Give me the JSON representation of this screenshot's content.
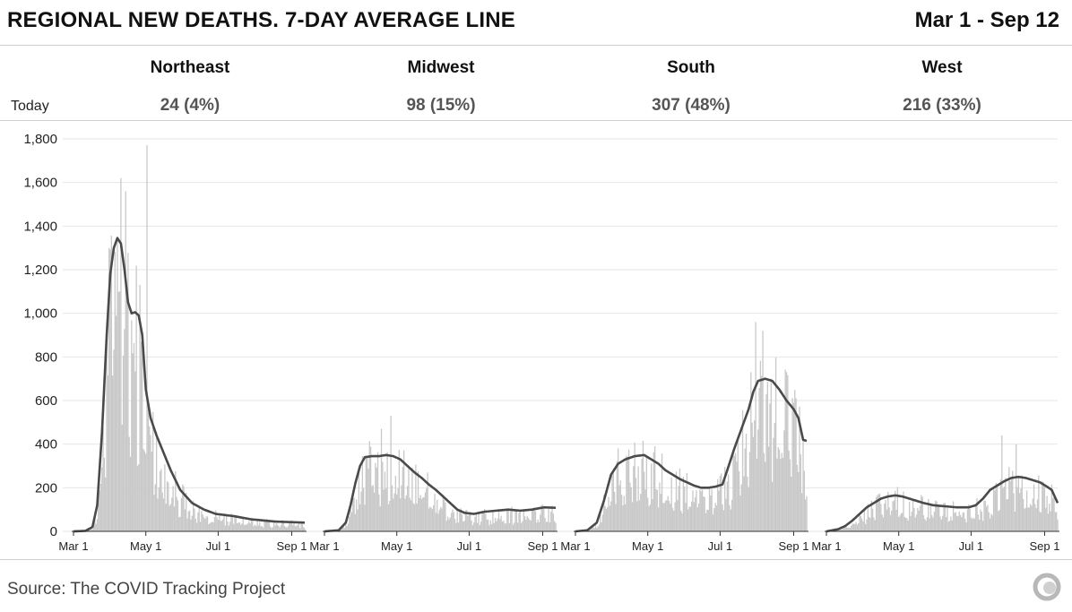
{
  "header": {
    "title": "REGIONAL NEW DEATHS. 7-DAY AVERAGE LINE",
    "date_range": "Mar 1 - Sep 12"
  },
  "today_label": "Today",
  "regions": [
    {
      "name": "Northeast",
      "today": "24 (4%)"
    },
    {
      "name": "Midwest",
      "today": "98 (15%)"
    },
    {
      "name": "South",
      "today": "307 (48%)"
    },
    {
      "name": "West",
      "today": "216 (33%)"
    }
  ],
  "footer": {
    "source": "Source: The COVID Tracking Project"
  },
  "colors": {
    "bars": "#c8c8c8",
    "line": "#4a4a4a",
    "grid": "#e6e6e6",
    "axis": "#333333"
  },
  "chart_data": {
    "type": "bar",
    "series_line": "7-day average",
    "y_ticks": [
      0,
      200,
      400,
      600,
      800,
      1000,
      1200,
      1400,
      1600,
      1800
    ],
    "y_tick_labels": [
      "0",
      "200",
      "400",
      "600",
      "800",
      "1,000",
      "1,200",
      "1,400",
      "1,600",
      "1,800"
    ],
    "ylim": [
      0,
      1800
    ],
    "x_tick_labels": [
      "Mar 1",
      "May 1",
      "Jul 1",
      "Sep 1"
    ],
    "x_tick_days": [
      0,
      61,
      122,
      184
    ],
    "x_range_days": [
      0,
      195
    ],
    "grid": true,
    "panels": [
      {
        "name": "Northeast",
        "avg_knots": [
          [
            0,
            0
          ],
          [
            10,
            2
          ],
          [
            16,
            20
          ],
          [
            20,
            120
          ],
          [
            24,
            450
          ],
          [
            28,
            900
          ],
          [
            31,
            1180
          ],
          [
            34,
            1300
          ],
          [
            37,
            1345
          ],
          [
            40,
            1320
          ],
          [
            43,
            1200
          ],
          [
            46,
            1050
          ],
          [
            49,
            1000
          ],
          [
            52,
            1005
          ],
          [
            55,
            990
          ],
          [
            58,
            900
          ],
          [
            61,
            650
          ],
          [
            65,
            520
          ],
          [
            70,
            440
          ],
          [
            76,
            360
          ],
          [
            82,
            280
          ],
          [
            90,
            190
          ],
          [
            100,
            130
          ],
          [
            110,
            100
          ],
          [
            120,
            80
          ],
          [
            135,
            70
          ],
          [
            150,
            55
          ],
          [
            170,
            45
          ],
          [
            195,
            40
          ]
        ],
        "daily_amp": [
          [
            0,
            0
          ],
          [
            12,
            10
          ],
          [
            18,
            80
          ],
          [
            24,
            600
          ],
          [
            30,
            1350
          ],
          [
            38,
            1500
          ],
          [
            45,
            1480
          ],
          [
            52,
            1300
          ],
          [
            58,
            1250
          ],
          [
            64,
            800
          ],
          [
            72,
            560
          ],
          [
            80,
            420
          ],
          [
            90,
            260
          ],
          [
            100,
            180
          ],
          [
            120,
            120
          ],
          [
            150,
            90
          ],
          [
            195,
            60
          ]
        ],
        "spikes": [
          [
            62,
            1770
          ],
          [
            40,
            1620
          ],
          [
            44,
            1560
          ]
        ]
      },
      {
        "name": "Midwest",
        "avg_knots": [
          [
            0,
            0
          ],
          [
            12,
            5
          ],
          [
            18,
            40
          ],
          [
            22,
            120
          ],
          [
            26,
            220
          ],
          [
            30,
            300
          ],
          [
            34,
            340
          ],
          [
            40,
            345
          ],
          [
            46,
            345
          ],
          [
            52,
            350
          ],
          [
            58,
            345
          ],
          [
            64,
            330
          ],
          [
            70,
            300
          ],
          [
            76,
            270
          ],
          [
            82,
            245
          ],
          [
            88,
            215
          ],
          [
            94,
            190
          ],
          [
            100,
            160
          ],
          [
            106,
            130
          ],
          [
            112,
            100
          ],
          [
            118,
            85
          ],
          [
            126,
            80
          ],
          [
            135,
            90
          ],
          [
            145,
            95
          ],
          [
            155,
            100
          ],
          [
            165,
            95
          ],
          [
            175,
            100
          ],
          [
            185,
            110
          ],
          [
            195,
            108
          ]
        ],
        "daily_amp": [
          [
            0,
            0
          ],
          [
            16,
            30
          ],
          [
            24,
            260
          ],
          [
            32,
            400
          ],
          [
            45,
            430
          ],
          [
            55,
            460
          ],
          [
            65,
            430
          ],
          [
            75,
            350
          ],
          [
            90,
            290
          ],
          [
            105,
            200
          ],
          [
            120,
            140
          ],
          [
            140,
            150
          ],
          [
            160,
            160
          ],
          [
            180,
            170
          ],
          [
            195,
            180
          ]
        ],
        "spikes": [
          [
            56,
            530
          ],
          [
            48,
            470
          ]
        ]
      },
      {
        "name": "South",
        "avg_knots": [
          [
            0,
            0
          ],
          [
            10,
            5
          ],
          [
            18,
            40
          ],
          [
            24,
            140
          ],
          [
            30,
            260
          ],
          [
            36,
            310
          ],
          [
            42,
            330
          ],
          [
            50,
            345
          ],
          [
            58,
            350
          ],
          [
            64,
            330
          ],
          [
            70,
            310
          ],
          [
            76,
            280
          ],
          [
            82,
            260
          ],
          [
            88,
            240
          ],
          [
            94,
            225
          ],
          [
            100,
            210
          ],
          [
            106,
            200
          ],
          [
            112,
            200
          ],
          [
            118,
            205
          ],
          [
            124,
            215
          ],
          [
            128,
            280
          ],
          [
            134,
            380
          ],
          [
            140,
            470
          ],
          [
            146,
            560
          ],
          [
            150,
            640
          ],
          [
            154,
            690
          ],
          [
            160,
            700
          ],
          [
            166,
            690
          ],
          [
            172,
            650
          ],
          [
            178,
            600
          ],
          [
            184,
            560
          ],
          [
            188,
            520
          ],
          [
            192,
            420
          ],
          [
            195,
            415
          ]
        ],
        "daily_amp": [
          [
            0,
            0
          ],
          [
            14,
            20
          ],
          [
            22,
            200
          ],
          [
            30,
            360
          ],
          [
            42,
            420
          ],
          [
            55,
            430
          ],
          [
            70,
            380
          ],
          [
            85,
            330
          ],
          [
            100,
            290
          ],
          [
            115,
            300
          ],
          [
            125,
            400
          ],
          [
            135,
            600
          ],
          [
            145,
            780
          ],
          [
            155,
            900
          ],
          [
            165,
            880
          ],
          [
            175,
            820
          ],
          [
            185,
            760
          ],
          [
            195,
            700
          ]
        ],
        "spikes": [
          [
            152,
            960
          ],
          [
            158,
            920
          ]
        ]
      },
      {
        "name": "West",
        "avg_knots": [
          [
            0,
            0
          ],
          [
            10,
            10
          ],
          [
            16,
            25
          ],
          [
            22,
            50
          ],
          [
            28,
            80
          ],
          [
            34,
            110
          ],
          [
            40,
            130
          ],
          [
            46,
            150
          ],
          [
            52,
            160
          ],
          [
            58,
            165
          ],
          [
            64,
            160
          ],
          [
            70,
            150
          ],
          [
            76,
            140
          ],
          [
            82,
            130
          ],
          [
            90,
            120
          ],
          [
            100,
            115
          ],
          [
            110,
            110
          ],
          [
            120,
            110
          ],
          [
            126,
            120
          ],
          [
            132,
            150
          ],
          [
            138,
            190
          ],
          [
            144,
            210
          ],
          [
            150,
            230
          ],
          [
            156,
            245
          ],
          [
            162,
            250
          ],
          [
            168,
            245
          ],
          [
            174,
            235
          ],
          [
            180,
            225
          ],
          [
            186,
            205
          ],
          [
            190,
            190
          ],
          [
            195,
            130
          ]
        ],
        "daily_amp": [
          [
            0,
            0
          ],
          [
            12,
            30
          ],
          [
            24,
            130
          ],
          [
            36,
            190
          ],
          [
            50,
            220
          ],
          [
            62,
            210
          ],
          [
            80,
            180
          ],
          [
            100,
            160
          ],
          [
            120,
            170
          ],
          [
            135,
            290
          ],
          [
            150,
            340
          ],
          [
            165,
            350
          ],
          [
            180,
            300
          ],
          [
            195,
            240
          ]
        ],
        "spikes": [
          [
            148,
            440
          ],
          [
            160,
            400
          ]
        ]
      }
    ]
  }
}
